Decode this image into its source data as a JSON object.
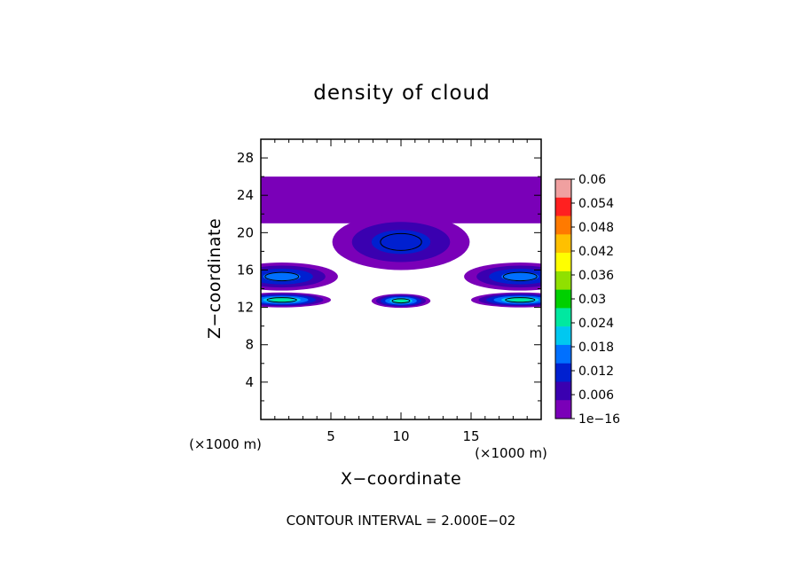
{
  "chart_data": {
    "type": "contour",
    "title": "density of cloud",
    "xlabel": "X−coordinate",
    "ylabel": "Z−coordinate",
    "x_unit": "(×1000 m)",
    "y_unit": "(×1000 m)",
    "xlim": [
      0,
      20
    ],
    "ylim": [
      0,
      30
    ],
    "x_ticks": [
      5,
      10,
      15
    ],
    "x_tick_labels": [
      "5",
      "10",
      "15"
    ],
    "y_ticks": [
      4,
      8,
      12,
      16,
      20,
      24,
      28
    ],
    "y_tick_labels": [
      "4",
      "8",
      "12",
      "16",
      "20",
      "24",
      "28"
    ],
    "x_minor_step": 1,
    "y_minor_step": 2,
    "footer": "CONTOUR INTERVAL = 2.000E−02",
    "colorbar": {
      "labels": [
        "0.06",
        "0.054",
        "0.048",
        "0.042",
        "0.036",
        "0.03",
        "0.024",
        "0.018",
        "0.012",
        "0.006",
        "1e−16"
      ],
      "colors": [
        "#f0a0a0",
        "#ff2020",
        "#ff7a00",
        "#ffc000",
        "#ffff00",
        "#90e000",
        "#00d000",
        "#00e8a0",
        "#00c8f0",
        "#0070ff",
        "#0020d0",
        "#3a00b0",
        "#7a00b8"
      ]
    },
    "features": [
      {
        "name": "upper-band",
        "kind": "band",
        "z_from": 21,
        "z_to": 26,
        "level": 1
      },
      {
        "name": "central-cloud",
        "kind": "blob",
        "x": 10,
        "z": 19,
        "width": 9.8,
        "height": 6,
        "level": 3
      },
      {
        "name": "left-cloud-upper",
        "kind": "blob",
        "x": 1.5,
        "z": 15.3,
        "width": 8,
        "height": 3,
        "level": 4
      },
      {
        "name": "right-cloud-upper",
        "kind": "blob",
        "x": 18.5,
        "z": 15.3,
        "width": 8,
        "height": 3,
        "level": 4
      },
      {
        "name": "left-cloud-lower",
        "kind": "blob",
        "x": 1.5,
        "z": 12.8,
        "width": 7,
        "height": 1.6,
        "level": 6
      },
      {
        "name": "center-cloud-lower",
        "kind": "blob",
        "x": 10,
        "z": 12.7,
        "width": 4.2,
        "height": 1.5,
        "level": 6
      },
      {
        "name": "right-cloud-lower",
        "kind": "blob",
        "x": 18.5,
        "z": 12.8,
        "width": 7,
        "height": 1.6,
        "level": 6
      }
    ]
  }
}
